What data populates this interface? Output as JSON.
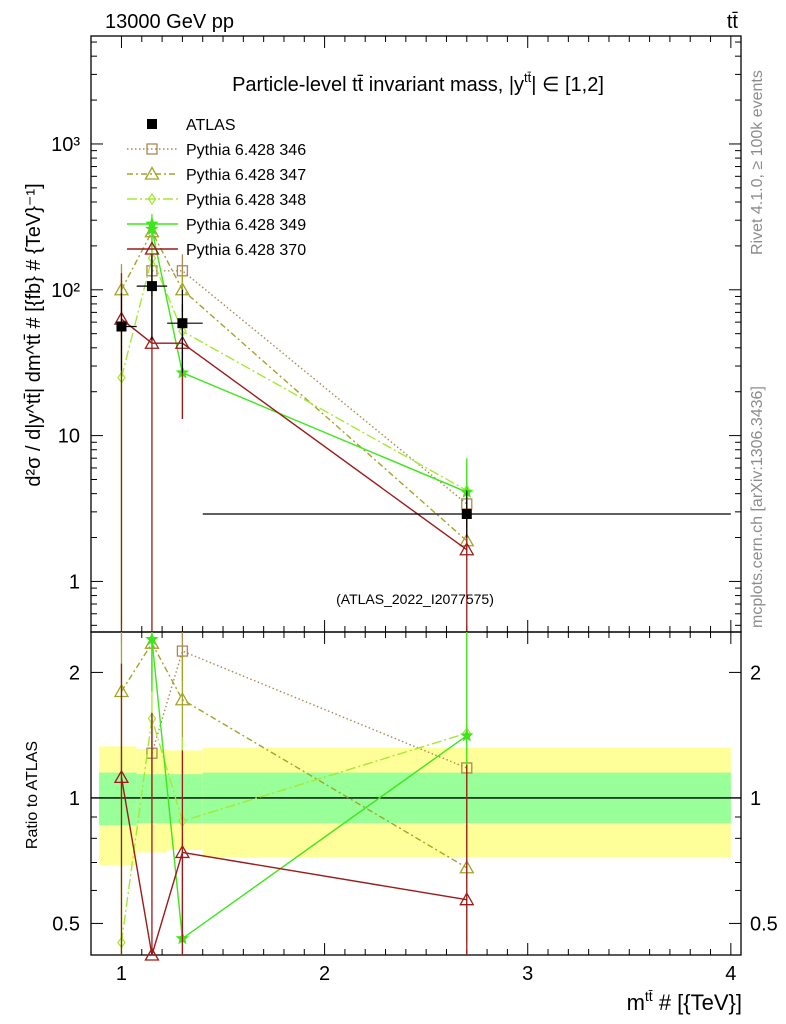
{
  "header": {
    "left": "13000 GeV pp",
    "right": "tt̄"
  },
  "side": {
    "rivet": "Rivet 4.1.0, ≥ 100k events",
    "mcplots": "mcplots.cern.ch [arXiv:1306.3436]"
  },
  "chart_data": [
    {
      "type": "line",
      "panel": "main",
      "title": "Particle-level tt̄ invariant mass, |y^tt̄| ∈ [1,2]",
      "title_prefix": "Particle-level tt̄ invariant mass, |y",
      "title_sup": "tt̄",
      "title_suffix": "| ∈ [1,2]",
      "ylabel": "d²σ / d|y^tt̄| dm^tt̄ # [{fb} # {TeV}⁻¹]",
      "yscale": "log",
      "xlim": [
        0.85,
        4.05
      ],
      "ylim": [
        0.45,
        5500
      ],
      "yticks": [
        {
          "v": 1,
          "label": "1"
        },
        {
          "v": 10,
          "label": "10"
        },
        {
          "v": 100,
          "label": "10²"
        },
        {
          "v": 1000,
          "label": "10³"
        }
      ],
      "watermark": "(ATLAS_2022_I2077575)",
      "legend_position": "top-left",
      "data": {
        "name": "ATLAS",
        "color": "#000000",
        "points": [
          {
            "x": 1.0,
            "xlo": 0.985,
            "xhi": 1.075,
            "y": 56,
            "ylo": 28,
            "yhi": 95
          },
          {
            "x": 1.15,
            "xlo": 1.075,
            "xhi": 1.225,
            "y": 106,
            "ylo": 45,
            "yhi": 175
          },
          {
            "x": 1.3,
            "xlo": 1.225,
            "xhi": 1.4,
            "y": 59,
            "ylo": 27,
            "yhi": 100
          },
          {
            "x": 2.7,
            "xlo": 1.4,
            "xhi": 4.0,
            "y": 2.9,
            "ylo": 2.0,
            "yhi": 4.2
          }
        ]
      },
      "series": [
        {
          "name": "Pythia 6.428 346",
          "color": "#a88a55",
          "marker": "square",
          "dash": "1.5,2.5",
          "x": [
            1.0,
            1.15,
            1.3,
            2.7
          ],
          "values": [
            null,
            135,
            135,
            3.4
          ],
          "err": [
            [
              null,
              null
            ],
            [
              90,
              160
            ],
            [
              95,
              175
            ],
            [
              2.6,
              4.5
            ]
          ]
        },
        {
          "name": "Pythia 6.428 347",
          "color": "#a3a32a",
          "marker": "triangle",
          "dash": "6,3,2,3",
          "x": [
            1.0,
            1.15,
            1.3,
            2.7
          ],
          "values": [
            100,
            250,
            100,
            1.9
          ],
          "err": [
            [
              60,
              150
            ],
            [
              190,
              310
            ],
            [
              70,
              130
            ],
            [
              1.4,
              2.6
            ]
          ]
        },
        {
          "name": "Pythia 6.428 348",
          "color": "#a6e835",
          "marker": "diamond",
          "dash": "10,3,2,3",
          "x": [
            1.0,
            1.15,
            1.3,
            2.7
          ],
          "values": [
            25,
            165,
            52,
            4.2
          ],
          "err": [
            [
              0.5,
              60
            ],
            [
              100,
              230
            ],
            [
              27,
              80
            ],
            [
              2.5,
              6.5
            ]
          ]
        },
        {
          "name": "Pythia 6.428 349",
          "color": "#3ee61b",
          "marker": "star",
          "dash": "",
          "x": [
            1.0,
            1.15,
            1.3,
            2.7
          ],
          "values": [
            null,
            260,
            27,
            4.1
          ],
          "err": [
            [
              null,
              null
            ],
            [
              180,
              330
            ],
            [
              13,
              45
            ],
            [
              2.5,
              7.0
            ]
          ]
        },
        {
          "name": "Pythia 6.428 370",
          "color": "#9b1b1b",
          "marker": "triangle",
          "dash": "",
          "x": [
            1.0,
            1.15,
            1.3,
            2.7
          ],
          "values": [
            63,
            43,
            43,
            1.65
          ],
          "err": [
            [
              0.3,
              130
            ],
            [
              0.3,
              170
            ],
            [
              13,
              80
            ],
            [
              0.3,
              3.6
            ]
          ]
        }
      ]
    },
    {
      "type": "line",
      "panel": "ratio",
      "ylabel": "Ratio to ATLAS",
      "xlabel": "m^tt̄ # [{TeV}]",
      "xlabel_base": "m",
      "xlabel_sup": "tt̄",
      "xlabel_suffix": " # [{TeV}]",
      "yscale": "log",
      "xlim": [
        0.85,
        4.05
      ],
      "ylim": [
        0.42,
        2.5
      ],
      "xticks": [
        {
          "v": 1,
          "label": "1"
        },
        {
          "v": 2,
          "label": "2"
        },
        {
          "v": 3,
          "label": "3"
        },
        {
          "v": 4,
          "label": "4"
        }
      ],
      "yticks": [
        {
          "v": 0.5,
          "label": "0.5"
        },
        {
          "v": 1,
          "label": "1"
        },
        {
          "v": 2,
          "label": "2"
        }
      ],
      "bands": [
        {
          "xlo": 0.89,
          "xhi": 1.075,
          "stat": [
            0.86,
            1.15
          ],
          "total": [
            0.69,
            1.33
          ]
        },
        {
          "xlo": 1.075,
          "xhi": 1.225,
          "stat": [
            0.87,
            1.14
          ],
          "total": [
            0.74,
            1.31
          ]
        },
        {
          "xlo": 1.225,
          "xhi": 1.4,
          "stat": [
            0.87,
            1.14
          ],
          "total": [
            0.75,
            1.3
          ]
        },
        {
          "xlo": 1.4,
          "xhi": 4.0,
          "stat": [
            0.87,
            1.15
          ],
          "total": [
            0.72,
            1.32
          ]
        }
      ],
      "series": [
        {
          "name": "Pythia 6.428 346",
          "x": [
            1.15,
            1.3,
            2.7
          ],
          "values": [
            1.28,
            2.25,
            1.18
          ],
          "err": [
            [
              1.0,
              1.6
            ],
            [
              1.9,
              2.5
            ],
            [
              0.9,
              1.5
            ]
          ]
        },
        {
          "name": "Pythia 6.428 347",
          "x": [
            1.0,
            1.15,
            1.3,
            2.7
          ],
          "values": [
            1.8,
            2.35,
            1.72,
            0.68
          ],
          "err": [
            [
              1.0,
              2.5
            ],
            [
              1.9,
              2.5
            ],
            [
              1.3,
              2.2
            ],
            [
              0.45,
              0.95
            ]
          ]
        },
        {
          "name": "Pythia 6.428 348",
          "x": [
            1.0,
            1.15,
            1.3,
            2.7
          ],
          "values": [
            0.45,
            1.55,
            0.88,
            1.43
          ],
          "err": [
            [
              0.42,
              1.0
            ],
            [
              1.0,
              2.2
            ],
            [
              0.45,
              1.4
            ],
            [
              0.9,
              2.5
            ]
          ]
        },
        {
          "name": "Pythia 6.428 349",
          "x": [
            1.15,
            1.3,
            2.7
          ],
          "values": [
            2.4,
            0.46,
            1.41
          ],
          "err": [
            [
              1.8,
              2.5
            ],
            [
              0.42,
              0.8
            ],
            [
              0.9,
              2.5
            ]
          ]
        },
        {
          "name": "Pythia 6.428 370",
          "x": [
            1.0,
            1.15,
            1.3,
            2.7
          ],
          "values": [
            1.12,
            0.41,
            0.74,
            0.57
          ],
          "err": [
            [
              0.42,
              2.1
            ],
            [
              0.42,
              1.6
            ],
            [
              0.42,
              1.3
            ],
            [
              0.42,
              1.2
            ]
          ]
        }
      ]
    }
  ]
}
